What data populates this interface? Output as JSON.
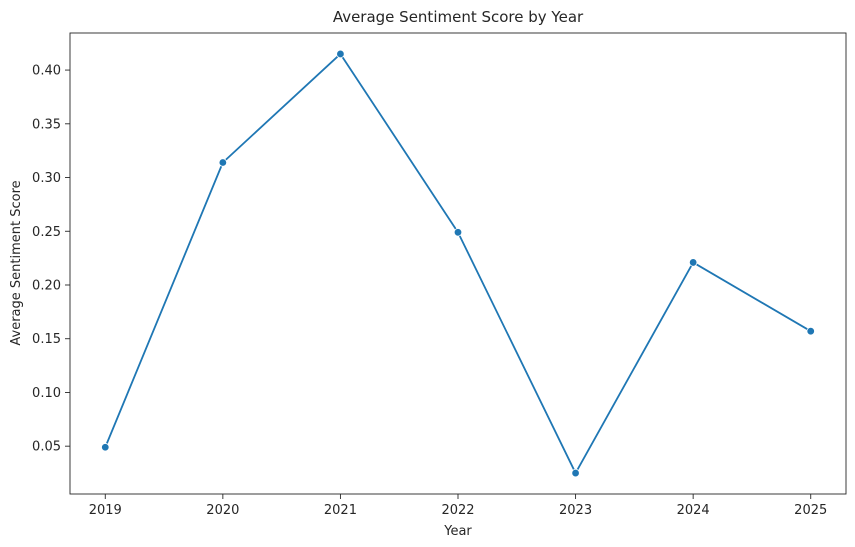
{
  "chart_data": {
    "type": "line",
    "title": "Average Sentiment Score by Year",
    "xlabel": "Year",
    "ylabel": "Average Sentiment Score",
    "x": [
      2019,
      2020,
      2021,
      2022,
      2023,
      2024,
      2025
    ],
    "series": [
      {
        "values": [
          0.049,
          0.314,
          0.415,
          0.249,
          0.025,
          0.221,
          0.157
        ]
      }
    ],
    "y_ticks": [
      0.05,
      0.1,
      0.15,
      0.2,
      0.25,
      0.3,
      0.35,
      0.4
    ],
    "y_tick_labels": [
      "0.05",
      "0.10",
      "0.15",
      "0.20",
      "0.25",
      "0.30",
      "0.35",
      "0.40"
    ],
    "x_tick_labels": [
      "2019",
      "2020",
      "2021",
      "2022",
      "2023",
      "2024",
      "2025"
    ],
    "ylim": [
      0.0055,
      0.4345
    ],
    "xlim": [
      2018.7,
      2025.3
    ],
    "grid": false,
    "marker": "circle",
    "line_color": "#1f77b4"
  }
}
